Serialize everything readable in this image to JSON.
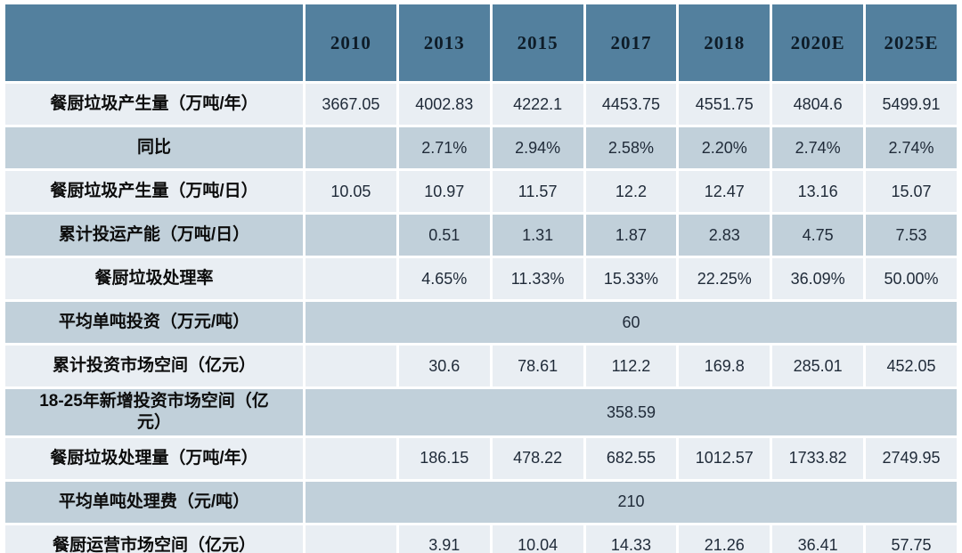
{
  "table": {
    "corner_label": "",
    "header": {
      "years": [
        "2010",
        "2013",
        "2015",
        "2017",
        "2018",
        "2020E",
        "2025E"
      ]
    },
    "rows": [
      {
        "label": "餐厨垃圾产生量（万吨/年）",
        "values": [
          "3667.05",
          "4002.83",
          "4222.1",
          "4453.75",
          "4551.75",
          "4804.6",
          "5499.91"
        ]
      },
      {
        "label": "同比",
        "values": [
          "",
          "2.71%",
          "2.94%",
          "2.58%",
          "2.20%",
          "2.74%",
          "2.74%"
        ]
      },
      {
        "label": "餐厨垃圾产生量（万吨/日）",
        "values": [
          "10.05",
          "10.97",
          "11.57",
          "12.2",
          "12.47",
          "13.16",
          "15.07"
        ]
      },
      {
        "label": "累计投运产能（万吨/日）",
        "values": [
          "",
          "0.51",
          "1.31",
          "1.87",
          "2.83",
          "4.75",
          "7.53"
        ]
      },
      {
        "label": "餐厨垃圾处理率",
        "values": [
          "",
          "4.65%",
          "11.33%",
          "15.33%",
          "22.25%",
          "36.09%",
          "50.00%"
        ]
      },
      {
        "label": "平均单吨投资（万元/吨）",
        "merged_value": "60"
      },
      {
        "label": "累计投资市场空间（亿元）",
        "values": [
          "",
          "30.6",
          "78.61",
          "112.2",
          "169.8",
          "285.01",
          "452.05"
        ]
      },
      {
        "label": "18-25年新增投资市场空间（亿元）",
        "merged_value": "358.59"
      },
      {
        "label": "餐厨垃圾处理量（万吨/年）",
        "values": [
          "",
          "186.15",
          "478.22",
          "682.55",
          "1012.57",
          "1733.82",
          "2749.95"
        ]
      },
      {
        "label": "平均单吨处理费（元/吨）",
        "merged_value": "210"
      },
      {
        "label": "餐厨运营市场空间（亿元）",
        "values": [
          "",
          "3.91",
          "10.04",
          "14.33",
          "21.26",
          "36.41",
          "57.75"
        ]
      }
    ],
    "colors": {
      "header_bg": "#53809e",
      "header_text": "#0e1c28",
      "row_light_bg": "#e9eef3",
      "row_medium_bg": "#c1d0da",
      "value_text": "#1f2a38",
      "label_text": "#0c0c0c",
      "gutter": "#ffffff"
    }
  },
  "chart_data": {
    "type": "table",
    "title": "餐厨垃圾市场数据表",
    "columns": [
      "",
      "2010",
      "2013",
      "2015",
      "2017",
      "2018",
      "2020E",
      "2025E"
    ],
    "rows": [
      [
        "餐厨垃圾产生量（万吨/年）",
        "3667.05",
        "4002.83",
        "4222.1",
        "4453.75",
        "4551.75",
        "4804.6",
        "5499.91"
      ],
      [
        "同比",
        "",
        "2.71%",
        "2.94%",
        "2.58%",
        "2.20%",
        "2.74%",
        "2.74%"
      ],
      [
        "餐厨垃圾产生量（万吨/日）",
        "10.05",
        "10.97",
        "11.57",
        "12.2",
        "12.47",
        "13.16",
        "15.07"
      ],
      [
        "累计投运产能（万吨/日）",
        "",
        "0.51",
        "1.31",
        "1.87",
        "2.83",
        "4.75",
        "7.53"
      ],
      [
        "餐厨垃圾处理率",
        "",
        "4.65%",
        "11.33%",
        "15.33%",
        "22.25%",
        "36.09%",
        "50.00%"
      ],
      [
        "平均单吨投资（万元/吨）",
        "60 (merged across all year columns)"
      ],
      [
        "累计投资市场空间（亿元）",
        "",
        "30.6",
        "78.61",
        "112.2",
        "169.8",
        "285.01",
        "452.05"
      ],
      [
        "18-25年新增投资市场空间（亿元）",
        "358.59 (merged across all year columns)"
      ],
      [
        "餐厨垃圾处理量（万吨/年）",
        "",
        "186.15",
        "478.22",
        "682.55",
        "1012.57",
        "1733.82",
        "2749.95"
      ],
      [
        "平均单吨处理费（元/吨）",
        "210 (merged across all year columns)"
      ],
      [
        "餐厨运营市场空间（亿元）",
        "",
        "3.91",
        "10.04",
        "14.33",
        "21.26",
        "36.41",
        "57.75"
      ]
    ],
    "layout": {
      "header_style": "steel-blue band, bold serif year labels",
      "row_striping": "alternating light (#e9eef3) and medium (#c1d0da) blue, white 3px gutters",
      "merged_rows_centered": true
    }
  }
}
